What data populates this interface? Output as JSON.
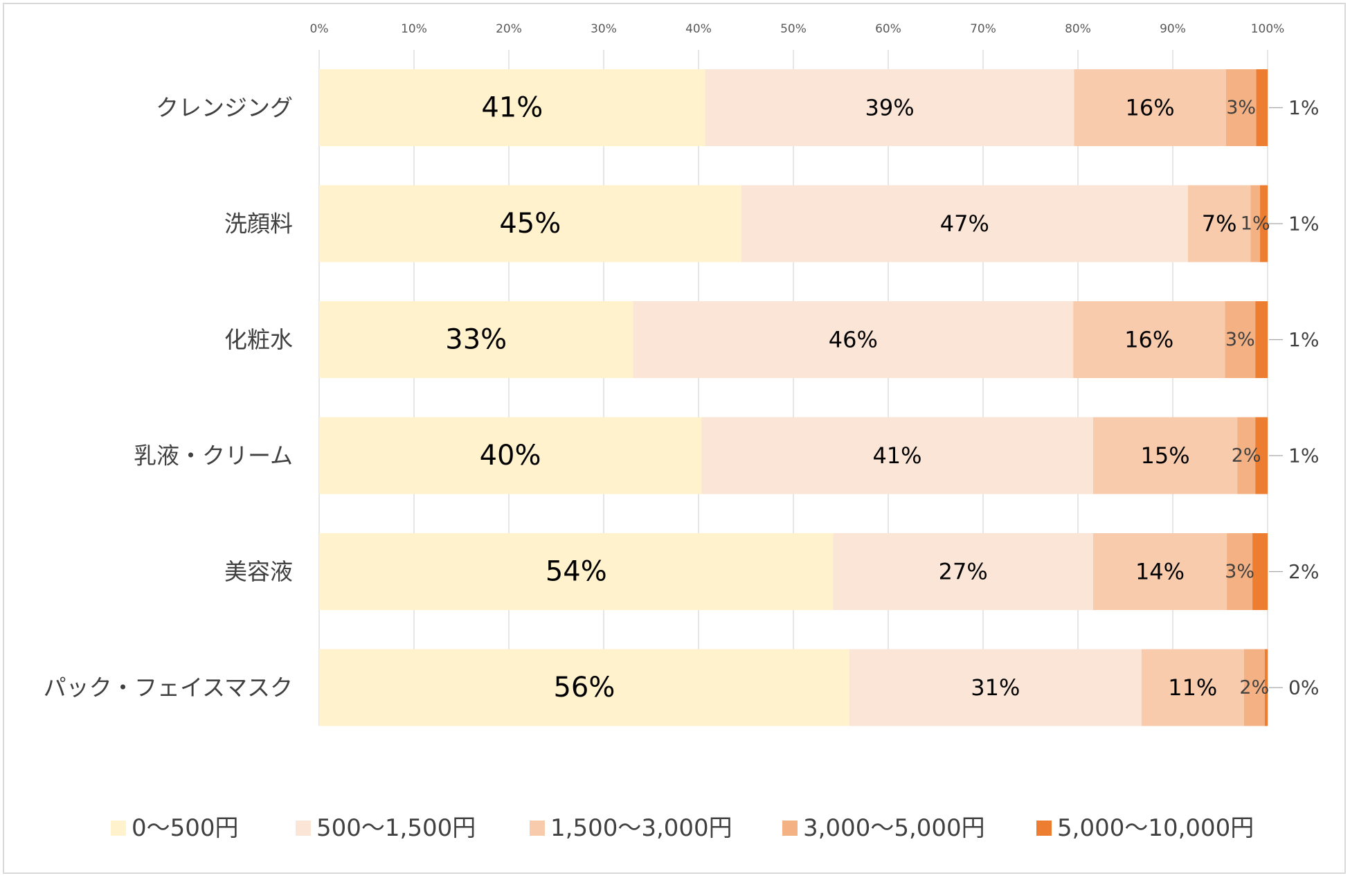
{
  "chart_data": {
    "type": "bar",
    "orientation": "horizontal",
    "stacked": "percent",
    "title": "",
    "xlabel": "",
    "ylabel": "",
    "xlim": [
      0,
      100
    ],
    "x_ticks": [
      "0%",
      "10%",
      "20%",
      "30%",
      "40%",
      "50%",
      "60%",
      "70%",
      "80%",
      "90%",
      "100%"
    ],
    "grid": true,
    "legend_position": "bottom",
    "categories": [
      "クレンジング",
      "洗顔料",
      "化粧水",
      "乳液・クリーム",
      "美容液",
      "パック・フェイスマスク"
    ],
    "series": [
      {
        "name": "0〜500円",
        "color": "#FFF2CC",
        "values": [
          40.7,
          44.5,
          33.1,
          40.3,
          54.2,
          55.9
        ],
        "labels": [
          "41%",
          "45%",
          "33%",
          "40%",
          "54%",
          "56%"
        ]
      },
      {
        "name": "500〜1,500円",
        "color": "#FBE5D6",
        "values": [
          38.9,
          47.1,
          46.4,
          41.3,
          27.4,
          30.8
        ],
        "labels": [
          "39%",
          "47%",
          "46%",
          "41%",
          "27%",
          "31%"
        ]
      },
      {
        "name": "1,500〜3,000円",
        "color": "#F8CBAD",
        "values": [
          16.0,
          6.6,
          16.0,
          15.2,
          14.1,
          10.8
        ],
        "labels": [
          "16%",
          "7%",
          "16%",
          "15%",
          "14%",
          "11%"
        ]
      },
      {
        "name": "3,000〜5,000円",
        "color": "#F4B183",
        "values": [
          3.2,
          1.0,
          3.2,
          1.9,
          2.7,
          2.2
        ],
        "labels": [
          "3%",
          "1%",
          "3%",
          "2%",
          "3%",
          "2%"
        ]
      },
      {
        "name": "5,000〜10,000円",
        "color": "#ED7D31",
        "values": [
          1.2,
          0.8,
          1.3,
          1.3,
          1.6,
          0.3
        ],
        "labels": [
          "1%",
          "1%",
          "1%",
          "1%",
          "2%",
          "0%"
        ]
      }
    ]
  }
}
